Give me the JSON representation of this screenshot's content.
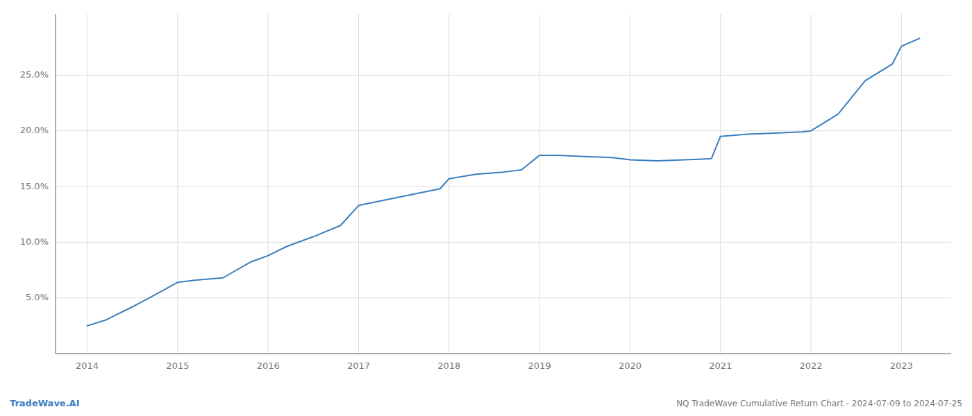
{
  "chart_data": {
    "type": "line",
    "title": "NQ TradeWave Cumulative Return Chart - 2024-07-09 to 2024-07-25",
    "annotations": [
      "TradeWave.AI"
    ],
    "color": "#3a7ebf",
    "x": [
      2014.0,
      2014.2,
      2014.5,
      2014.8,
      2015.0,
      2015.2,
      2015.5,
      2015.8,
      2016.0,
      2016.2,
      2016.5,
      2016.8,
      2017.0,
      2017.3,
      2017.6,
      2017.9,
      2018.0,
      2018.3,
      2018.6,
      2018.8,
      2019.0,
      2019.2,
      2019.5,
      2019.8,
      2020.0,
      2020.3,
      2020.6,
      2020.9,
      2021.0,
      2021.3,
      2021.6,
      2021.9,
      2022.0,
      2022.3,
      2022.6,
      2022.9,
      2023.0,
      2023.2
    ],
    "values": [
      0.025,
      0.03,
      0.042,
      0.055,
      0.064,
      0.066,
      0.068,
      0.082,
      0.088,
      0.096,
      0.105,
      0.115,
      0.133,
      0.138,
      0.143,
      0.148,
      0.157,
      0.161,
      0.163,
      0.165,
      0.178,
      0.178,
      0.177,
      0.176,
      0.174,
      0.173,
      0.174,
      0.175,
      0.195,
      0.197,
      0.198,
      0.199,
      0.2,
      0.215,
      0.245,
      0.26,
      0.276,
      0.283
    ],
    "xlim": [
      2013.65,
      2023.55
    ],
    "ylim": [
      0.0,
      0.305
    ],
    "xticks": [
      2014,
      2015,
      2016,
      2017,
      2018,
      2019,
      2020,
      2021,
      2022,
      2023
    ],
    "yticks": [
      {
        "value": 0.05,
        "label": "5.0%"
      },
      {
        "value": 0.1,
        "label": "10.0%"
      },
      {
        "value": 0.15,
        "label": "15.0%"
      },
      {
        "value": 0.2,
        "label": "20.0%"
      },
      {
        "value": 0.25,
        "label": "25.0%"
      }
    ],
    "grid": true
  }
}
